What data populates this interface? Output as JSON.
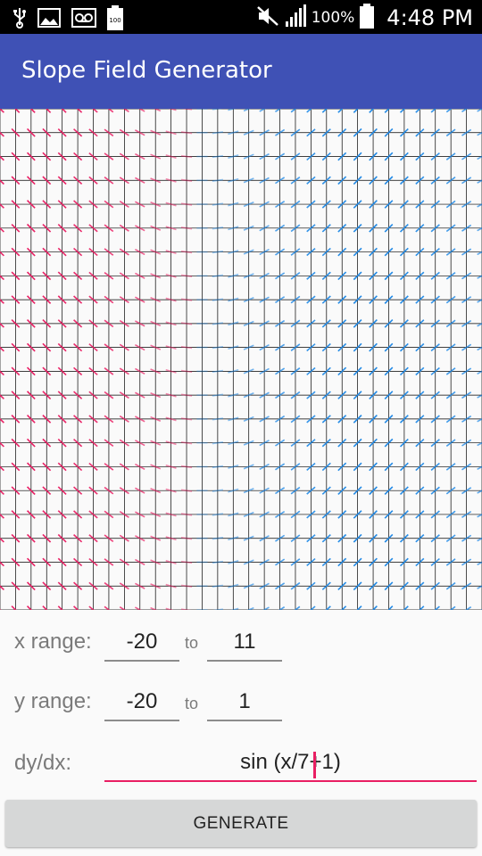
{
  "status_bar": {
    "battery_percent": "100%",
    "time": "4:48 PM",
    "left_icons": [
      "usb-icon",
      "image-icon",
      "voicemail-icon",
      "battery-100-icon"
    ],
    "right_icons": [
      "mute-icon",
      "signal-icon",
      "battery-icon"
    ]
  },
  "app_bar": {
    "title": "Slope Field Generator"
  },
  "form": {
    "x_range": {
      "label": "x range:",
      "to": "to",
      "min": "-20",
      "max": "11"
    },
    "y_range": {
      "label": "y range:",
      "to": "to",
      "min": "-20",
      "max": "1"
    },
    "equation": {
      "label": "dy/dx:",
      "value": "sin (x/7+1)"
    },
    "generate_label": "GENERATE"
  },
  "slope_field": {
    "equation": "sin (x/7+1)",
    "x_range": [
      -20,
      11
    ],
    "y_range": [
      -20,
      1
    ],
    "colors": {
      "negative": "#e91e63",
      "positive": "#1e88e5",
      "grid": "#000000"
    }
  }
}
